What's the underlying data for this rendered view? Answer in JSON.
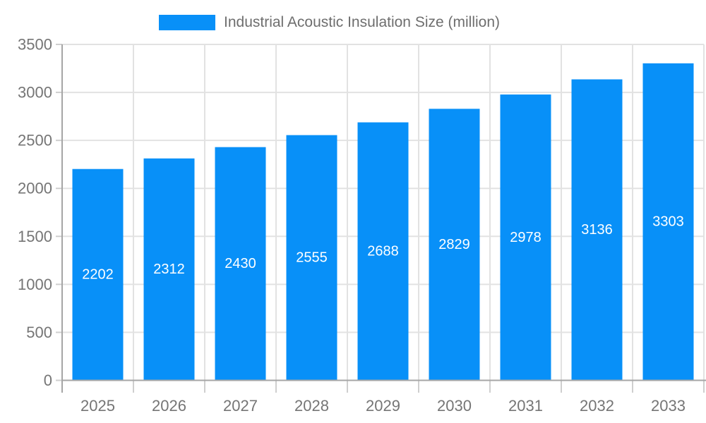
{
  "legend": {
    "label": "Industrial Acoustic Insulation Size (million)"
  },
  "colors": {
    "bar": "#0890f8",
    "grid": "#e2e2e2",
    "axis": "#a6a6a6",
    "tick": "#cfcfcf",
    "axis_label": "#757575",
    "value_label": "#ffffff",
    "legend_text": "#6e6e6e",
    "background": "#ffffff"
  },
  "chart_data": {
    "type": "bar",
    "title": "Industrial Acoustic Insulation Size (million)",
    "categories": [
      "2025",
      "2026",
      "2027",
      "2028",
      "2029",
      "2030",
      "2031",
      "2032",
      "2033"
    ],
    "values": [
      2202,
      2312,
      2430,
      2555,
      2688,
      2829,
      2978,
      3136,
      3303
    ],
    "series_name": "Industrial Acoustic Insulation Size (million)",
    "xlabel": "",
    "ylabel": "",
    "ylim": [
      0,
      3500
    ],
    "yticks": [
      0,
      500,
      1000,
      1500,
      2000,
      2500,
      3000,
      3500
    ],
    "grid": true,
    "legend_position": "top-center",
    "value_labels": "inside-middle",
    "axis_font_size": 22,
    "value_font_size": 20
  }
}
